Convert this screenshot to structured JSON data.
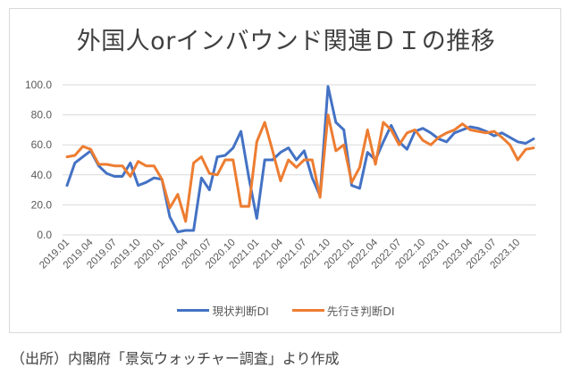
{
  "source_note": "（出所）内閣府「景気ウォッチャー調査」より作成",
  "colors": {
    "series1": "#4472c4",
    "series2": "#ed7d31",
    "grid": "#d9d9d9"
  },
  "chart_data": {
    "type": "line",
    "title": "外国人orインバウンド関連ＤＩの推移",
    "xlabel": "",
    "ylabel": "",
    "ylim": [
      0,
      100
    ],
    "yticks": [
      "0.0",
      "20.0",
      "40.0",
      "60.0",
      "80.0",
      "100.0"
    ],
    "ytick_values": [
      0,
      20,
      40,
      60,
      80,
      100
    ],
    "grid": true,
    "legend_position": "bottom",
    "x": [
      "2019.01",
      "2019.02",
      "2019.03",
      "2019.04",
      "2019.05",
      "2019.06",
      "2019.07",
      "2019.08",
      "2019.09",
      "2019.10",
      "2019.11",
      "2019.12",
      "2020.01",
      "2020.02",
      "2020.03",
      "2020.04",
      "2020.05",
      "2020.06",
      "2020.07",
      "2020.08",
      "2020.09",
      "2020.10",
      "2020.11",
      "2020.12",
      "2021.01",
      "2021.02",
      "2021.03",
      "2021.04",
      "2021.05",
      "2021.06",
      "2021.07",
      "2021.08",
      "2021.09",
      "2021.10",
      "2021.11",
      "2021.12",
      "2022.01",
      "2022.02",
      "2022.03",
      "2022.04",
      "2022.05",
      "2022.06",
      "2022.07",
      "2022.08",
      "2022.09",
      "2022.10",
      "2022.11",
      "2022.12",
      "2023.01",
      "2023.02",
      "2023.03",
      "2023.04",
      "2023.05",
      "2023.06",
      "2023.07",
      "2023.08",
      "2023.09",
      "2023.10",
      "2023.11",
      "2023.12"
    ],
    "xtick_labels": [
      "2019.01",
      "2019.04",
      "2019.07",
      "2019.10",
      "2020.01",
      "2020.04",
      "2020.07",
      "2020.10",
      "2021.01",
      "2021.04",
      "2021.07",
      "2021.10",
      "2022.01",
      "2022.04",
      "2022.07",
      "2022.10",
      "2023.01",
      "2023.04",
      "2023.07",
      "2023.10"
    ],
    "series": [
      {
        "name": "現状判断DI",
        "color": "#4472c4",
        "values": [
          33,
          48,
          52,
          56,
          46,
          41,
          39,
          39,
          48,
          33,
          35,
          38,
          37,
          12,
          2,
          3,
          3,
          38,
          30,
          52,
          53,
          58,
          69,
          38,
          11,
          50,
          50,
          55,
          58,
          50,
          56,
          38,
          26,
          99,
          75,
          70,
          33,
          31,
          55,
          50,
          62,
          73,
          62,
          57,
          69,
          71,
          68,
          64,
          62,
          68,
          70,
          72,
          71,
          69,
          66,
          68,
          65,
          62,
          61,
          64
        ]
      },
      {
        "name": "先行き判断DI",
        "color": "#ed7d31",
        "values": [
          52,
          53,
          59,
          57,
          47,
          47,
          46,
          46,
          39,
          49,
          46,
          46,
          37,
          18,
          27,
          9,
          48,
          52,
          41,
          40,
          50,
          50,
          19,
          19,
          62,
          75,
          56,
          36,
          50,
          45,
          50,
          50,
          25,
          80,
          56,
          60,
          35,
          45,
          70,
          47,
          75,
          70,
          60,
          68,
          70,
          63,
          60,
          65,
          68,
          70,
          74,
          70,
          69,
          68,
          69,
          65,
          60,
          50,
          57,
          58
        ]
      }
    ]
  }
}
